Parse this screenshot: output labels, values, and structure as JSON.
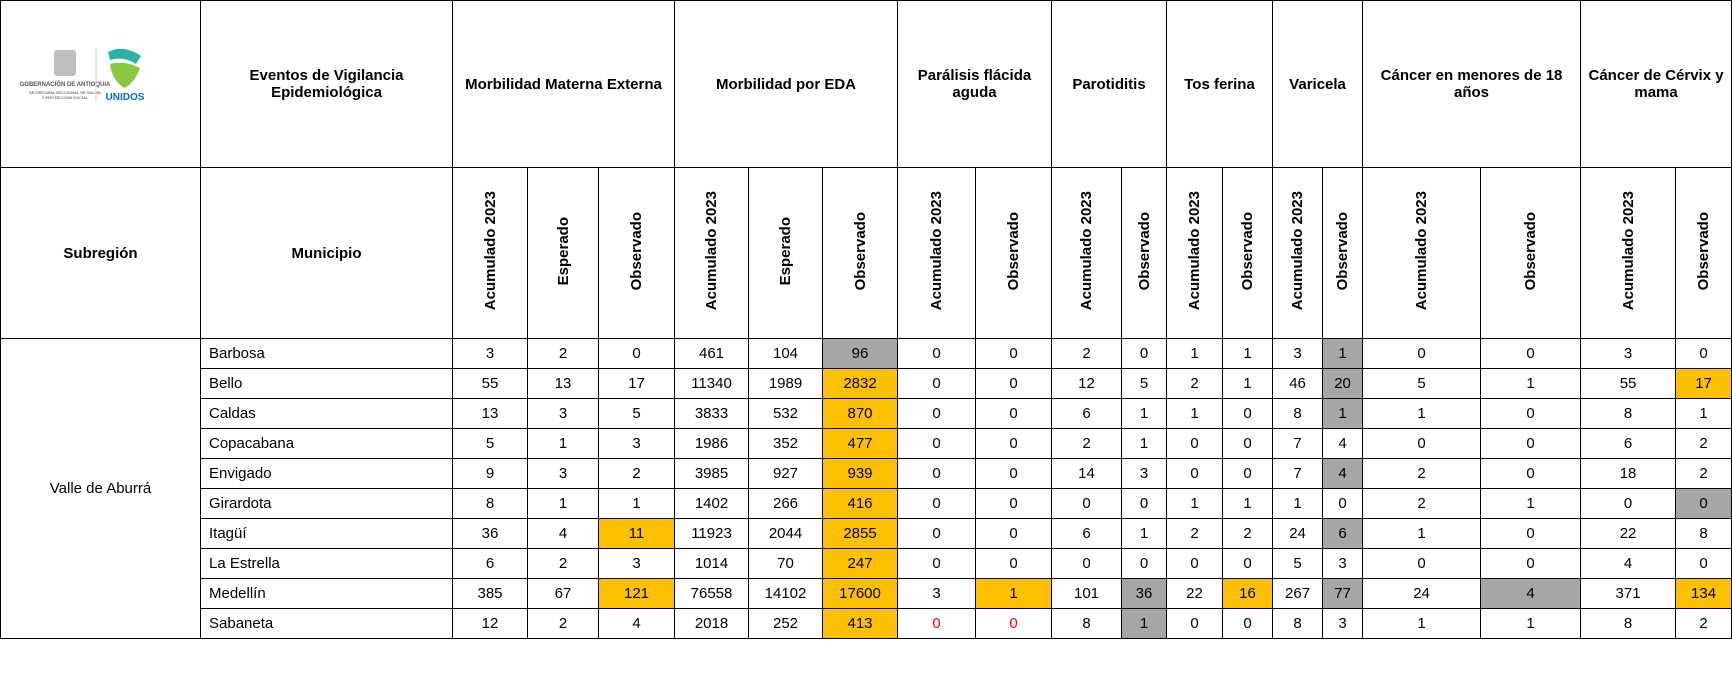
{
  "logo": {
    "line1": "GOBERNACIÓN DE ANTIOQUIA",
    "line2": "SECRETARÍA SECCIONAL DE SALUD",
    "line3": "Y PROTECCIÓN SOCIAL",
    "brand": "UNIDOS"
  },
  "header": {
    "events": "Eventos de Vigilancia Epidemiológica",
    "subregion": "Subregión",
    "municipio": "Municipio",
    "groups": [
      {
        "name": "Morbilidad Materna Externa",
        "columns": [
          "Acumulado 2023",
          "Esperado",
          "Observado"
        ]
      },
      {
        "name": "Morbilidad por EDA",
        "columns": [
          "Acumulado 2023",
          "Esperado",
          "Observado"
        ]
      },
      {
        "name": "Parálisis flácida aguda",
        "columns": [
          "Acumulado 2023",
          "Observado"
        ]
      },
      {
        "name": "Parotiditis",
        "columns": [
          "Acumulado 2023",
          "Observado"
        ]
      },
      {
        "name": "Tos ferina",
        "columns": [
          "Acumulado 2023",
          "Observado"
        ]
      },
      {
        "name": "Varicela",
        "columns": [
          "Acumulado 2023",
          "Observado"
        ]
      },
      {
        "name": "Cáncer en menores de 18 años",
        "columns": [
          "Acumulado 2023",
          "Observado"
        ]
      },
      {
        "name": "Cáncer de Cérvix y mama",
        "columns": [
          "Acumulado 2023",
          "Observado"
        ]
      }
    ]
  },
  "table": {
    "subregion": "Valle de Aburrá",
    "rows": [
      {
        "municipio": "Barbosa",
        "values": [
          3,
          2,
          0,
          461,
          104,
          96,
          0,
          0,
          2,
          0,
          1,
          1,
          3,
          1,
          0,
          0,
          3,
          0
        ],
        "fills": {
          "5": "#a6a6a6",
          "13": "#a6a6a6"
        }
      },
      {
        "municipio": "Bello",
        "values": [
          55,
          13,
          17,
          11340,
          1989,
          2832,
          0,
          0,
          12,
          5,
          2,
          1,
          46,
          20,
          5,
          1,
          55,
          17
        ],
        "fills": {
          "5": "#ffc000",
          "13": "#a6a6a6",
          "17": "#ffc000"
        }
      },
      {
        "municipio": "Caldas",
        "values": [
          13,
          3,
          5,
          3833,
          532,
          870,
          0,
          0,
          6,
          1,
          1,
          0,
          8,
          1,
          1,
          0,
          8,
          1
        ],
        "fills": {
          "5": "#ffc000",
          "13": "#a6a6a6"
        }
      },
      {
        "municipio": "Copacabana",
        "values": [
          5,
          1,
          3,
          1986,
          352,
          477,
          0,
          0,
          2,
          1,
          0,
          0,
          7,
          4,
          0,
          0,
          6,
          2
        ],
        "fills": {
          "5": "#ffc000"
        }
      },
      {
        "municipio": "Envigado",
        "values": [
          9,
          3,
          2,
          3985,
          927,
          939,
          0,
          0,
          14,
          3,
          0,
          0,
          7,
          4,
          2,
          0,
          18,
          2
        ],
        "fills": {
          "5": "#ffc000",
          "13": "#a6a6a6"
        }
      },
      {
        "municipio": "Girardota",
        "values": [
          8,
          1,
          1,
          1402,
          266,
          416,
          0,
          0,
          0,
          0,
          1,
          1,
          1,
          0,
          2,
          1,
          0,
          0
        ],
        "fills": {
          "5": "#ffc000",
          "17": "#a6a6a6"
        }
      },
      {
        "municipio": "Itagüí",
        "values": [
          36,
          4,
          11,
          11923,
          2044,
          2855,
          0,
          0,
          6,
          1,
          2,
          2,
          24,
          6,
          1,
          0,
          22,
          8
        ],
        "fills": {
          "2": "#ffc000",
          "5": "#ffc000",
          "13": "#a6a6a6"
        }
      },
      {
        "municipio": "La Estrella",
        "values": [
          6,
          2,
          3,
          1014,
          70,
          247,
          0,
          0,
          0,
          0,
          0,
          0,
          5,
          3,
          0,
          0,
          4,
          0
        ],
        "fills": {
          "5": "#ffc000"
        }
      },
      {
        "municipio": "Medellín",
        "values": [
          385,
          67,
          121,
          76558,
          14102,
          17600,
          3,
          1,
          101,
          36,
          22,
          16,
          267,
          77,
          24,
          4,
          371,
          134
        ],
        "fills": {
          "2": "#ffc000",
          "5": "#ffc000",
          "7": "#ffc000",
          "9": "#a6a6a6",
          "11": "#ffc000",
          "13": "#a6a6a6",
          "15": "#a6a6a6",
          "17": "#ffc000"
        }
      },
      {
        "municipio": "Sabaneta",
        "values": [
          12,
          2,
          4,
          2018,
          252,
          413,
          0,
          0,
          8,
          1,
          0,
          0,
          8,
          3,
          1,
          1,
          8,
          2
        ],
        "fills": {
          "5": "#ffc000",
          "9": "#a6a6a6"
        },
        "text_colors": {
          "6": "#ff0000",
          "7": "#ff0000"
        }
      }
    ]
  }
}
